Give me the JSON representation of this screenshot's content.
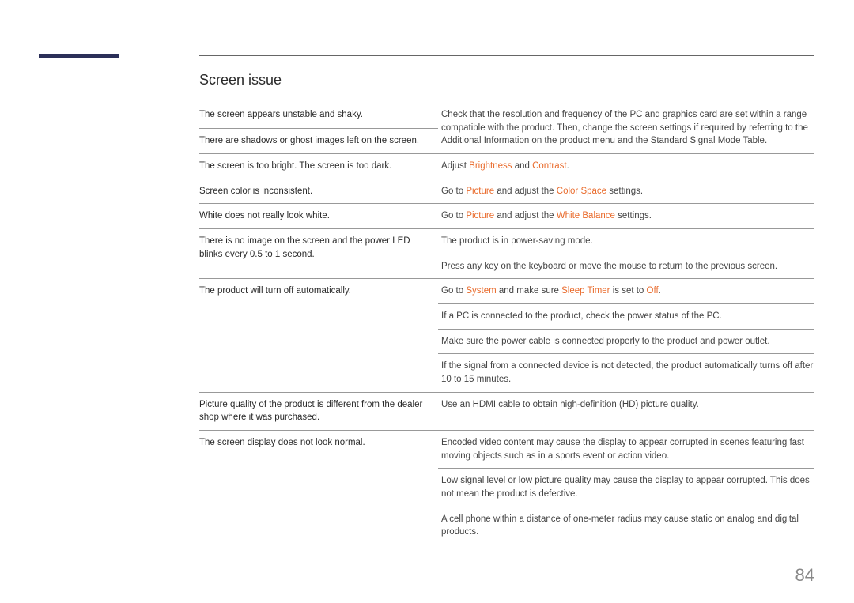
{
  "colors": {
    "sidebar_bar": "#2b2f58",
    "highlight": "#e96b2c",
    "rule": "#999999",
    "text": "#3a3a3a",
    "page_number": "#888888"
  },
  "section_title": "Screen issue",
  "page_number": "84",
  "rows": [
    {
      "issue": "The screen appears unstable and shaky.",
      "solution_segments": [
        [
          "Check that the resolution and frequency of the PC and graphics card are set within a range compatible with the product. Then, change the screen settings if required by referring to the Additional Information on the product menu and the Standard Signal Mode Table.",
          false
        ]
      ],
      "merge_next_issue": true
    },
    {
      "issue": "There are shadows or ghost images left on the screen.",
      "solution_segments": null
    },
    {
      "issue": "The screen is too bright. The screen is too dark.",
      "solution_segments": [
        [
          "Adjust ",
          false
        ],
        [
          "Brightness",
          true
        ],
        [
          " and ",
          false
        ],
        [
          "Contrast",
          true
        ],
        [
          ".",
          false
        ]
      ]
    },
    {
      "issue": "Screen color is inconsistent.",
      "solution_segments": [
        [
          "Go to ",
          false
        ],
        [
          "Picture",
          true
        ],
        [
          " and adjust the ",
          false
        ],
        [
          "Color Space",
          true
        ],
        [
          " settings.",
          false
        ]
      ]
    },
    {
      "issue": "White does not really look white.",
      "solution_segments": [
        [
          "Go to ",
          false
        ],
        [
          "Picture",
          true
        ],
        [
          " and adjust the ",
          false
        ],
        [
          "White Balance",
          true
        ],
        [
          " settings.",
          false
        ]
      ]
    },
    {
      "issue": "There is no image on the screen and the power LED blinks every 0.5 to 1 second.",
      "solution_segments": [
        [
          "The product is in power-saving mode.",
          false
        ]
      ],
      "extra_solution_rows": [
        [
          [
            "Press any key on the keyboard or move the mouse to return to the previous screen.",
            false
          ]
        ]
      ]
    },
    {
      "issue": "The product will turn off automatically.",
      "solution_segments": [
        [
          "Go to ",
          false
        ],
        [
          "System",
          true
        ],
        [
          " and make sure ",
          false
        ],
        [
          "Sleep Timer",
          true
        ],
        [
          " is set to ",
          false
        ],
        [
          "Off",
          true
        ],
        [
          ".",
          false
        ]
      ],
      "extra_solution_rows": [
        [
          [
            "If a PC is connected to the product, check the power status of the PC.",
            false
          ]
        ],
        [
          [
            "Make sure the power cable is connected properly to the product and power outlet.",
            false
          ]
        ],
        [
          [
            "If the signal from a connected device is not detected, the product automatically turns off after 10 to 15 minutes.",
            false
          ]
        ]
      ]
    },
    {
      "issue": "Picture quality of the product is different from the dealer shop where it was purchased.",
      "solution_segments": [
        [
          "Use an HDMI cable to obtain high-definition (HD) picture quality.",
          false
        ]
      ]
    },
    {
      "issue": "The screen display does not look normal.",
      "solution_segments": [
        [
          "Encoded video content may cause the display to appear corrupted in scenes featuring fast moving objects such as in a sports event or action video.",
          false
        ]
      ],
      "extra_solution_rows": [
        [
          [
            "Low signal level or low picture quality may cause the display to appear corrupted. This does not mean the product is defective.",
            false
          ]
        ],
        [
          [
            "A cell phone within a distance of one-meter radius may cause static on analog and digital products.",
            false
          ]
        ]
      ]
    }
  ]
}
